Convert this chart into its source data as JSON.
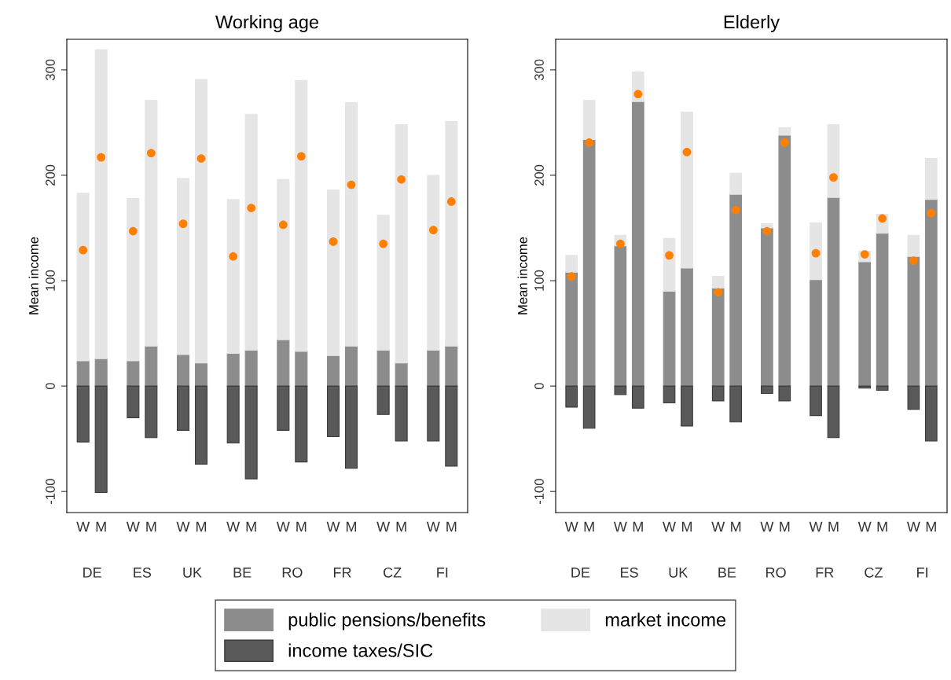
{
  "chart_data": [
    {
      "type": "bar",
      "title": "Working age",
      "ylabel": "Mean income",
      "stacked": true,
      "legend": "bottom",
      "grid": false,
      "categories": [
        "W",
        "M",
        "W",
        "M",
        "W",
        "M",
        "W",
        "M",
        "W",
        "M",
        "W",
        "M",
        "W",
        "M",
        "W",
        "M"
      ],
      "annotations": [
        "DE",
        "ES",
        "UK",
        "BE",
        "RO",
        "FR",
        "CZ",
        "FI"
      ],
      "ylim": [
        -120,
        329
      ],
      "yticks": [
        -100,
        0,
        100,
        200,
        300
      ],
      "series": [
        {
          "name": "public pensions/benefits",
          "color": "#8c8c8c",
          "values": [
            24,
            26,
            24,
            38,
            30,
            22,
            31,
            34,
            44,
            33,
            29,
            38,
            34,
            22,
            34,
            38
          ]
        },
        {
          "name": "market income",
          "color": "#e5e5e5",
          "values": [
            159,
            293,
            154,
            233,
            167,
            269,
            146,
            224,
            152,
            257,
            157,
            231,
            128,
            226,
            166,
            213
          ]
        },
        {
          "name": "income taxes/SIC",
          "color": "#595959",
          "values": [
            -53,
            -101,
            -30,
            -49,
            -42,
            -74,
            -54,
            -88,
            -42,
            -72,
            -48,
            -78,
            -27,
            -52,
            -52,
            -76
          ]
        },
        {
          "type": "scatter",
          "color": "#ff8000",
          "marker": "circle",
          "values": [
            129,
            217,
            147,
            221,
            154,
            216,
            123,
            169,
            153,
            218,
            137,
            191,
            135,
            196,
            148,
            175
          ]
        }
      ]
    },
    {
      "type": "bar",
      "title": "Elderly",
      "ylabel": "Mean income",
      "stacked": true,
      "grid": false,
      "categories": [
        "W",
        "M",
        "W",
        "M",
        "W",
        "M",
        "W",
        "M",
        "W",
        "M",
        "W",
        "M",
        "W",
        "M",
        "W",
        "M"
      ],
      "annotations": [
        "DE",
        "ES",
        "UK",
        "BE",
        "RO",
        "FR",
        "CZ",
        "FI"
      ],
      "ylim": [
        -120,
        329
      ],
      "yticks": [
        -100,
        0,
        100,
        200,
        300
      ],
      "series": [
        {
          "color": "#8c8c8c",
          "values": [
            108,
            234,
            133,
            270,
            90,
            112,
            93,
            182,
            150,
            238,
            101,
            179,
            118,
            145,
            123,
            177
          ]
        },
        {
          "color": "#e5e5e5",
          "values": [
            16,
            37,
            10,
            28,
            50,
            148,
            11,
            20,
            4,
            7,
            54,
            69,
            10,
            18,
            20,
            39
          ]
        },
        {
          "color": "#595959",
          "values": [
            -20,
            -40,
            -8,
            -21,
            -16,
            -38,
            -14,
            -34,
            -7,
            -14,
            -28,
            -49,
            -2,
            -4,
            -22,
            -52
          ]
        },
        {
          "type": "scatter",
          "color": "#ff8000",
          "marker": "circle",
          "values": [
            104,
            231,
            135,
            277,
            124,
            222,
            89,
            167,
            147,
            231,
            126,
            198,
            125,
            159,
            119,
            164
          ]
        }
      ]
    }
  ]
}
